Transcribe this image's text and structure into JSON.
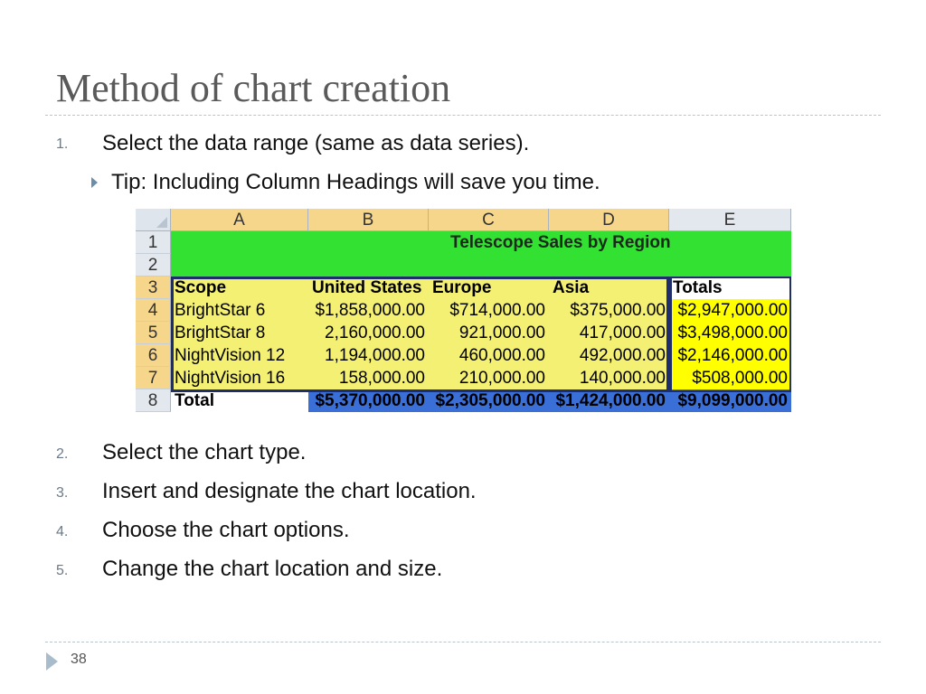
{
  "slide": {
    "title": "Method of chart creation",
    "page_number": "38"
  },
  "steps": [
    {
      "num": "1.",
      "text": "Select the data range (same as data series)."
    },
    {
      "num": "2.",
      "text": "Select the chart type."
    },
    {
      "num": "3.",
      "text": "Insert and designate the chart location."
    },
    {
      "num": "4.",
      "text": "Choose the chart options."
    },
    {
      "num": "5.",
      "text": "Change the chart location and size."
    }
  ],
  "tip": "Tip: Including Column Headings will save you time.",
  "sheet": {
    "columns": [
      "A",
      "B",
      "C",
      "D",
      "E"
    ],
    "rows": [
      "1",
      "2",
      "3",
      "4",
      "5",
      "6",
      "7",
      "8"
    ],
    "table_title": "Telescope Sales by Region",
    "headers": [
      "Scope",
      "United States",
      "Europe",
      "Asia",
      "Totals"
    ],
    "data": [
      [
        "BrightStar 6",
        "$1,858,000.00",
        "$714,000.00",
        "$375,000.00",
        "$2,947,000.00"
      ],
      [
        "BrightStar 8",
        "2,160,000.00",
        "921,000.00",
        "417,000.00",
        "$3,498,000.00"
      ],
      [
        "NightVision 12",
        "1,194,000.00",
        "460,000.00",
        "492,000.00",
        "$2,146,000.00"
      ],
      [
        "NightVision 16",
        "158,000.00",
        "210,000.00",
        "140,000.00",
        "$508,000.00"
      ]
    ],
    "total_row": [
      "Total",
      "$5,370,000.00",
      "$2,305,000.00",
      "$1,424,000.00",
      "$9,099,000.00"
    ]
  },
  "colors": {
    "header_green": "#33e133",
    "data_yellow": "#f4f073",
    "totals_yellow": "#ffff00",
    "total_blue": "#3a6fd8",
    "title_gray": "#5a5a5a"
  }
}
